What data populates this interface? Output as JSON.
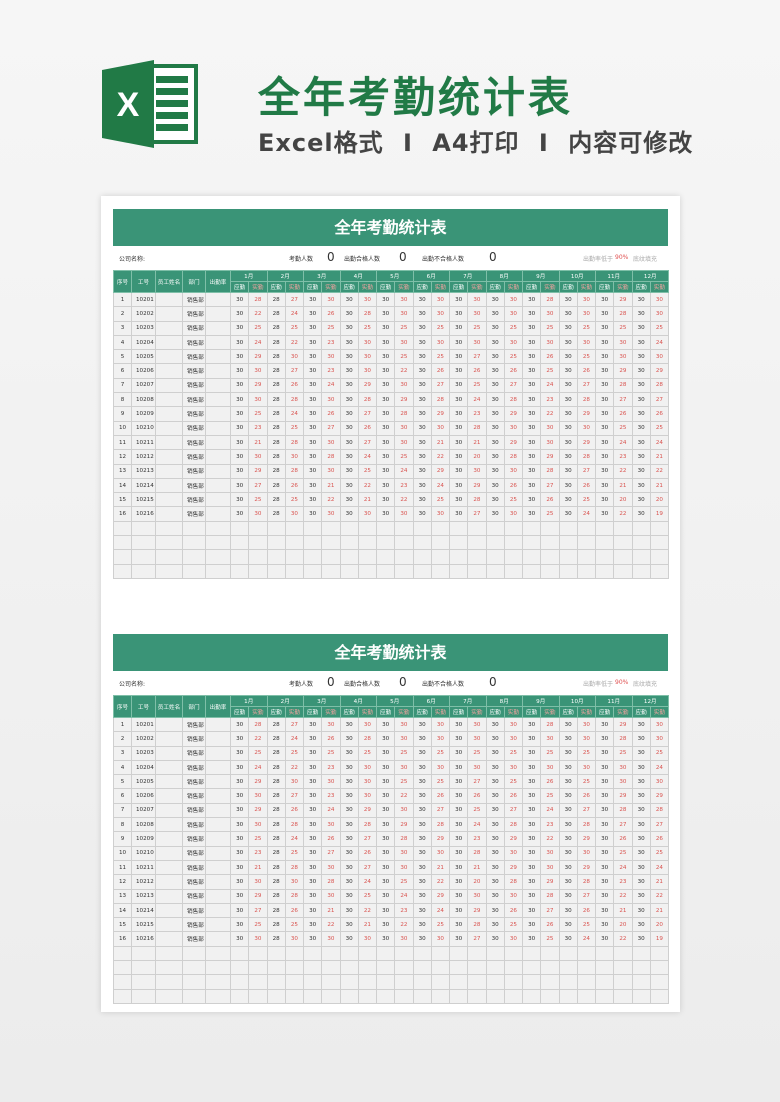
{
  "hero": {
    "title": "全年考勤统计表",
    "subtitle": [
      "Excel格式",
      "I",
      "A4打印",
      "I",
      "内容可修改"
    ],
    "logo_letter": "X"
  },
  "sheet": {
    "title": "全年考勤统计表",
    "company_label": "公司名称:",
    "attendance_count_label": "考勤人数",
    "attendance_count": "0",
    "qualified_label": "出勤合格人数",
    "qualified_count": "0",
    "unqualified_label": "出勤不合格人数",
    "unqualified_count": "0",
    "note_prefix": "出勤率低于",
    "note_threshold": "90%",
    "note_suffix": "底纹填充",
    "headers": [
      "序号",
      "工号",
      "员工姓名",
      "部门",
      "出勤率"
    ],
    "months": [
      "1月",
      "2月",
      "3月",
      "4月",
      "5月",
      "6月",
      "7月",
      "8月",
      "9月",
      "10月",
      "11月",
      "12月"
    ],
    "sub_headers": [
      "应勤",
      "实勤"
    ],
    "required_days": [
      30,
      28,
      30,
      30,
      30,
      30,
      30,
      30,
      30,
      30,
      30,
      30
    ],
    "rows": [
      {
        "no": "1",
        "id": "10201",
        "name": "",
        "dept": "销售部",
        "rate": "",
        "actual": [
          28,
          27,
          30,
          30,
          30,
          30,
          30,
          30,
          28,
          30,
          29,
          30
        ]
      },
      {
        "no": "2",
        "id": "10202",
        "name": "",
        "dept": "销售部",
        "rate": "",
        "actual": [
          22,
          24,
          26,
          28,
          30,
          30,
          30,
          30,
          30,
          30,
          28,
          30
        ]
      },
      {
        "no": "3",
        "id": "10203",
        "name": "",
        "dept": "销售部",
        "rate": "",
        "actual": [
          25,
          25,
          25,
          25,
          25,
          25,
          25,
          25,
          25,
          25,
          25,
          25
        ]
      },
      {
        "no": "4",
        "id": "10204",
        "name": "",
        "dept": "销售部",
        "rate": "",
        "actual": [
          24,
          22,
          23,
          30,
          30,
          30,
          30,
          30,
          30,
          30,
          30,
          24
        ]
      },
      {
        "no": "5",
        "id": "10205",
        "name": "",
        "dept": "销售部",
        "rate": "",
        "actual": [
          29,
          30,
          30,
          30,
          25,
          25,
          27,
          25,
          26,
          25,
          30,
          30
        ]
      },
      {
        "no": "6",
        "id": "10206",
        "name": "",
        "dept": "销售部",
        "rate": "",
        "actual": [
          30,
          27,
          23,
          30,
          22,
          26,
          26,
          26,
          25,
          26,
          29,
          29
        ]
      },
      {
        "no": "7",
        "id": "10207",
        "name": "",
        "dept": "销售部",
        "rate": "",
        "actual": [
          29,
          26,
          24,
          29,
          30,
          27,
          25,
          27,
          24,
          27,
          28,
          28
        ]
      },
      {
        "no": "8",
        "id": "10208",
        "name": "",
        "dept": "销售部",
        "rate": "",
        "actual": [
          30,
          28,
          30,
          28,
          29,
          28,
          24,
          28,
          23,
          28,
          27,
          27
        ]
      },
      {
        "no": "9",
        "id": "10209",
        "name": "",
        "dept": "销售部",
        "rate": "",
        "actual": [
          25,
          24,
          26,
          27,
          28,
          29,
          23,
          29,
          22,
          29,
          26,
          26
        ]
      },
      {
        "no": "10",
        "id": "10210",
        "name": "",
        "dept": "销售部",
        "rate": "",
        "actual": [
          23,
          25,
          27,
          26,
          30,
          30,
          28,
          30,
          30,
          30,
          25,
          25
        ]
      },
      {
        "no": "11",
        "id": "10211",
        "name": "",
        "dept": "销售部",
        "rate": "",
        "actual": [
          21,
          28,
          30,
          27,
          30,
          21,
          21,
          29,
          30,
          29,
          24,
          24
        ]
      },
      {
        "no": "12",
        "id": "10212",
        "name": "",
        "dept": "销售部",
        "rate": "",
        "actual": [
          30,
          30,
          28,
          24,
          25,
          22,
          20,
          28,
          29,
          28,
          23,
          21
        ]
      },
      {
        "no": "13",
        "id": "10213",
        "name": "",
        "dept": "销售部",
        "rate": "",
        "actual": [
          29,
          28,
          30,
          25,
          24,
          29,
          30,
          30,
          28,
          27,
          22,
          22
        ]
      },
      {
        "no": "14",
        "id": "10214",
        "name": "",
        "dept": "销售部",
        "rate": "",
        "actual": [
          27,
          26,
          21,
          22,
          23,
          24,
          29,
          26,
          27,
          26,
          21,
          21
        ]
      },
      {
        "no": "15",
        "id": "10215",
        "name": "",
        "dept": "销售部",
        "rate": "",
        "actual": [
          25,
          25,
          22,
          21,
          22,
          25,
          28,
          25,
          26,
          25,
          20,
          20
        ]
      },
      {
        "no": "16",
        "id": "10216",
        "name": "",
        "dept": "销售部",
        "rate": "",
        "actual": [
          30,
          30,
          30,
          30,
          30,
          30,
          27,
          30,
          25,
          24,
          22,
          19
        ]
      }
    ],
    "empty_rows": 4
  },
  "colors": {
    "brand_green": "#3a9477",
    "logo_green": "#217a46",
    "red": "#d9534f"
  }
}
